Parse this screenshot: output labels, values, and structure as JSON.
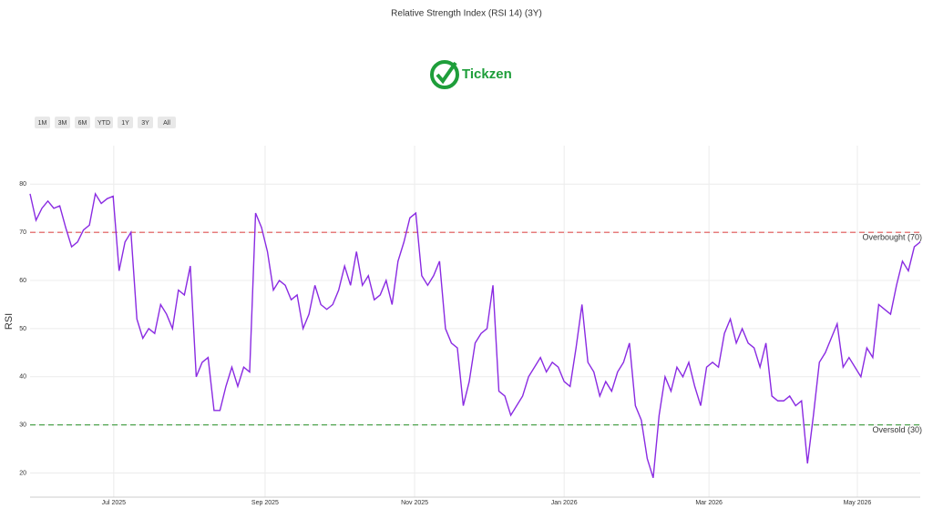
{
  "ui": {
    "logo": "Tickzen",
    "range_buttons": [
      "1M",
      "3M",
      "6M",
      "YTD",
      "1Y",
      "3Y",
      "All"
    ]
  },
  "chart_data": {
    "type": "line",
    "title": "Relative Strength Index (RSI 14) (3Y)",
    "ylabel": "RSI",
    "series": [
      {
        "name": "RSI",
        "color": "#8a2be2",
        "values": [
          78,
          72.5,
          75,
          76.5,
          75,
          75.5,
          71,
          67,
          68,
          70.5,
          71.5,
          78,
          76,
          77,
          77.5,
          62,
          68,
          70,
          52,
          48,
          50,
          49,
          55,
          53,
          50,
          58,
          57,
          63,
          40,
          43,
          44,
          33,
          33,
          38,
          42,
          38,
          42,
          41,
          74,
          71,
          66,
          58,
          60,
          59,
          56,
          57,
          50,
          53,
          59,
          55,
          54,
          55,
          58,
          63,
          59,
          66,
          59,
          61,
          56,
          57,
          60,
          55,
          64,
          68,
          73,
          74,
          61,
          59,
          61,
          64,
          50,
          47,
          46,
          34,
          39,
          47,
          49,
          50,
          59,
          37,
          36,
          32,
          34,
          36,
          40,
          42,
          44,
          41,
          43,
          42,
          39,
          38,
          46,
          55,
          43,
          41,
          36,
          39,
          37,
          41,
          43,
          47,
          34,
          31,
          23,
          19,
          32,
          40,
          37,
          42,
          40,
          43,
          38,
          34,
          42,
          43,
          42,
          49,
          52,
          47,
          50,
          47,
          46,
          42,
          47,
          36,
          35,
          35,
          36,
          34,
          35,
          22,
          32,
          43,
          45,
          48,
          51,
          42,
          44,
          42,
          40,
          46,
          44,
          55,
          54,
          53,
          59,
          64,
          62,
          67,
          68
        ]
      }
    ],
    "xlim": [
      0,
      150
    ],
    "xticks": [
      {
        "value": 14.1,
        "label": "Jul 2025"
      },
      {
        "value": 39.6,
        "label": "Sep 2025"
      },
      {
        "value": 64.8,
        "label": "Nov 2025"
      },
      {
        "value": 90,
        "label": "Jan 2026"
      },
      {
        "value": 114.4,
        "label": "Mar 2026"
      },
      {
        "value": 139.4,
        "label": "May 2026"
      }
    ],
    "ylim": [
      15,
      88
    ],
    "yticks": [
      20,
      30,
      40,
      50,
      60,
      70,
      80
    ],
    "grid": true,
    "hlines": [
      {
        "value": 70,
        "label": "Overbought (70)",
        "color": "#e05252"
      },
      {
        "value": 30,
        "label": "Oversold (30)",
        "color": "#3a9a3a"
      }
    ]
  }
}
